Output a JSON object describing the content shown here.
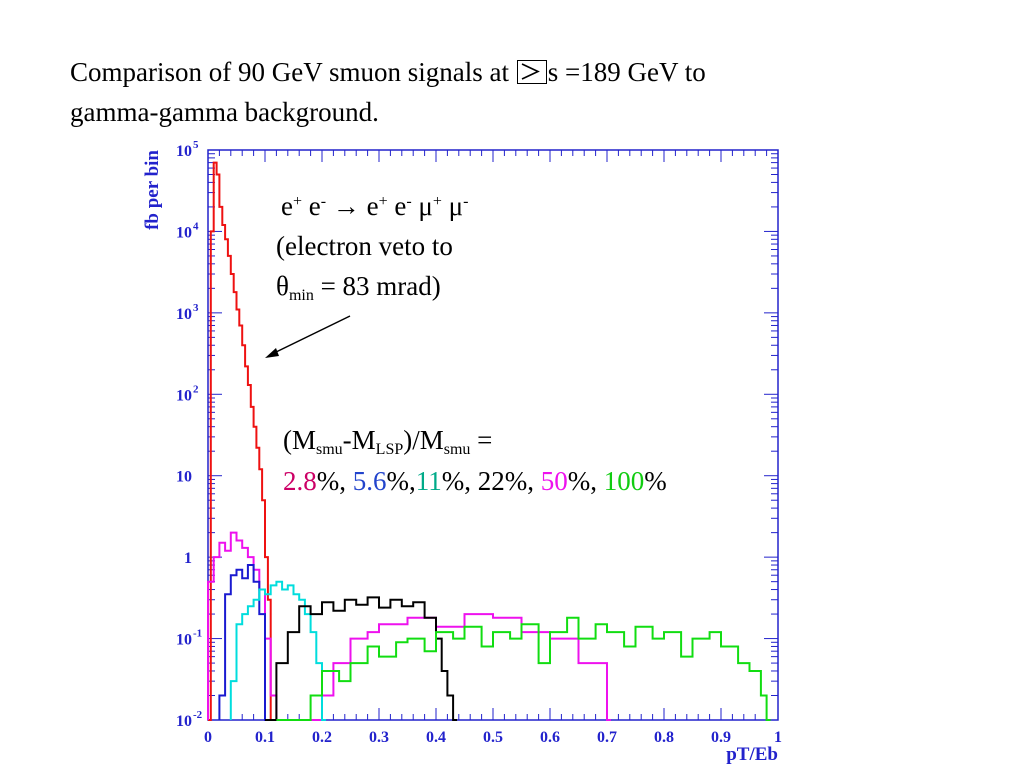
{
  "slide": {
    "title_line1_before": "Comparison of 90 GeV smuon signals at",
    "title_line1_after": "s =189 GeV to",
    "title_line2": "gamma-gamma background."
  },
  "annotation_process": {
    "e": "e",
    "plus": "+",
    "minus": "-",
    "arrow": "→",
    "mu": "μ",
    "veto_line": "(electron veto to",
    "theta": "θ",
    "min": "min",
    "theta_value": " = 83 mrad)"
  },
  "annotation_mass": {
    "open": "(M",
    "smu": "smu",
    "dash_m": "-M",
    "lsp": "LSP",
    "close_slash": ")/M",
    "equals": " =",
    "v1": "2.8",
    "v2": "5.6",
    "v3": "11",
    "v4": "22",
    "v5": "50",
    "v6": "100",
    "pct": "%",
    "sep": ", "
  },
  "colors": {
    "axis": "#2222cc",
    "red": "#ee1111",
    "blue": "#1a1ad0",
    "magenta": "#ee11ee",
    "cyan": "#00dddd",
    "black": "#000000",
    "green": "#11dd11",
    "label_v1": "#cc0066",
    "label_v2": "#2244cc",
    "label_v3": "#00aa88",
    "label_v5": "#ee11ee",
    "label_v6": "#11cc11"
  },
  "chart_data": {
    "type": "line",
    "style": "histogram-step",
    "xlabel": "pT/Eb",
    "ylabel": "fb per bin",
    "xlim": [
      0,
      1
    ],
    "ylim": [
      0.01,
      100000
    ],
    "yscale": "log",
    "x_ticks": [
      "0",
      "0.1",
      "0.2",
      "0.3",
      "0.4",
      "0.5",
      "0.6",
      "0.7",
      "0.8",
      "0.9",
      "1"
    ],
    "y_ticks": [
      {
        "base": "10",
        "exp": "5",
        "value": 100000
      },
      {
        "base": "10",
        "exp": "4",
        "value": 10000
      },
      {
        "base": "10",
        "exp": "3",
        "value": 1000
      },
      {
        "base": "10",
        "exp": "2",
        "value": 100
      },
      {
        "base": "10",
        "exp": "",
        "value": 10
      },
      {
        "base": "1",
        "exp": "",
        "value": 1
      },
      {
        "base": "10",
        "exp": "-1",
        "value": 0.1
      },
      {
        "base": "10",
        "exp": "-2",
        "value": 0.01
      }
    ],
    "series": [
      {
        "color_key": "red",
        "x": [
          0,
          0.005,
          0.01,
          0.015,
          0.02,
          0.025,
          0.03,
          0.035,
          0.04,
          0.045,
          0.05,
          0.055,
          0.06,
          0.065,
          0.07,
          0.075,
          0.08,
          0.085,
          0.09,
          0.095,
          0.1,
          0.105,
          0.11
        ],
        "y": [
          0.01,
          10000,
          70000,
          50000,
          20000,
          12000,
          8000,
          5000,
          3000,
          1800,
          1100,
          700,
          400,
          220,
          130,
          70,
          40,
          22,
          12,
          5,
          1,
          0.3,
          0.01
        ]
      },
      {
        "color_key": "magenta",
        "x": [
          0,
          0.01,
          0.02,
          0.03,
          0.04,
          0.05,
          0.06,
          0.07,
          0.08,
          0.09,
          0.1,
          0.11,
          0.12,
          0.13,
          0.14,
          0.15,
          0.16,
          0.17,
          0.18,
          0.2,
          0.22,
          0.25,
          0.28,
          0.3,
          0.35,
          0.4,
          0.45,
          0.5,
          0.55,
          0.6,
          0.65,
          0.7
        ],
        "y": [
          0.5,
          1,
          1.5,
          1.2,
          2,
          1.6,
          1.3,
          1.0,
          0.7,
          0.4,
          0.1,
          0.02,
          0.01,
          0.01,
          0.01,
          0.01,
          0.01,
          0.01,
          0.01,
          0.02,
          0.05,
          0.1,
          0.12,
          0.15,
          0.18,
          0.14,
          0.2,
          0.18,
          0.12,
          0.1,
          0.05,
          0.01
        ]
      },
      {
        "color_key": "blue",
        "x": [
          0.02,
          0.03,
          0.04,
          0.05,
          0.06,
          0.07,
          0.08,
          0.09,
          0.1
        ],
        "y": [
          0.02,
          0.35,
          0.6,
          0.7,
          0.55,
          0.8,
          0.5,
          0.2,
          0.01
        ]
      },
      {
        "color_key": "cyan",
        "x": [
          0.04,
          0.05,
          0.06,
          0.07,
          0.08,
          0.09,
          0.1,
          0.11,
          0.12,
          0.13,
          0.14,
          0.15,
          0.16,
          0.17,
          0.18,
          0.19,
          0.2
        ],
        "y": [
          0.03,
          0.15,
          0.2,
          0.25,
          0.3,
          0.4,
          0.35,
          0.45,
          0.5,
          0.4,
          0.45,
          0.35,
          0.3,
          0.2,
          0.12,
          0.05,
          0.01
        ]
      },
      {
        "color_key": "black",
        "x": [
          0.1,
          0.12,
          0.14,
          0.16,
          0.18,
          0.2,
          0.22,
          0.24,
          0.26,
          0.28,
          0.3,
          0.32,
          0.34,
          0.36,
          0.38,
          0.4,
          0.41,
          0.42,
          0.43
        ],
        "y": [
          0.01,
          0.05,
          0.12,
          0.25,
          0.2,
          0.28,
          0.22,
          0.3,
          0.26,
          0.32,
          0.24,
          0.3,
          0.25,
          0.28,
          0.18,
          0.1,
          0.04,
          0.02,
          0.01
        ]
      },
      {
        "color_key": "green",
        "x": [
          0.12,
          0.15,
          0.18,
          0.2,
          0.23,
          0.25,
          0.28,
          0.3,
          0.33,
          0.35,
          0.38,
          0.4,
          0.43,
          0.45,
          0.48,
          0.5,
          0.53,
          0.55,
          0.58,
          0.6,
          0.63,
          0.65,
          0.68,
          0.7,
          0.73,
          0.75,
          0.78,
          0.8,
          0.83,
          0.85,
          0.88,
          0.9,
          0.93,
          0.95,
          0.97,
          0.98
        ],
        "y": [
          0.01,
          0.01,
          0.02,
          0.04,
          0.03,
          0.05,
          0.08,
          0.06,
          0.09,
          0.1,
          0.07,
          0.12,
          0.1,
          0.14,
          0.08,
          0.12,
          0.1,
          0.15,
          0.05,
          0.12,
          0.18,
          0.1,
          0.15,
          0.12,
          0.08,
          0.14,
          0.1,
          0.12,
          0.06,
          0.1,
          0.12,
          0.08,
          0.05,
          0.04,
          0.02,
          0.01
        ]
      }
    ]
  }
}
